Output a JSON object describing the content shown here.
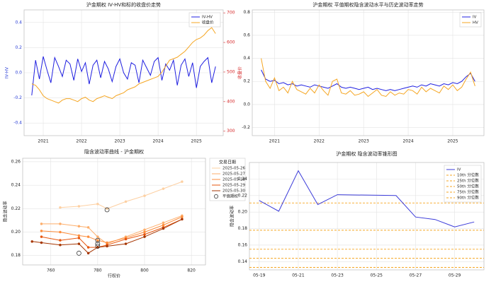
{
  "chart_data": [
    {
      "type": "line",
      "title": "沪金期权 IV-HV和标的收盘价走势",
      "ylabel": "IV-HV",
      "y2label": "收盘价",
      "y_color": "#2b3fd6",
      "y2_color": "#d62728",
      "grid": true,
      "legend": "upper right",
      "x": [
        2020.7,
        2020.8,
        2020.9,
        2021.0,
        2021.1,
        2021.2,
        2021.3,
        2021.4,
        2021.5,
        2021.6,
        2021.7,
        2021.8,
        2021.9,
        2022.0,
        2022.1,
        2022.2,
        2022.3,
        2022.4,
        2022.5,
        2022.6,
        2022.7,
        2022.8,
        2022.9,
        2023.0,
        2023.1,
        2023.2,
        2023.3,
        2023.4,
        2023.5,
        2023.6,
        2023.7,
        2023.8,
        2023.9,
        2024.0,
        2024.1,
        2024.2,
        2024.3,
        2024.4,
        2024.5,
        2024.6,
        2024.7,
        2024.8,
        2024.9,
        2025.0,
        2025.1,
        2025.2,
        2025.3,
        2025.4,
        2025.5
      ],
      "xlim": [
        2020.5,
        2025.7
      ],
      "xticks": [
        2021,
        2022,
        2023,
        2024,
        2025
      ],
      "ylim": [
        -0.5,
        0.5
      ],
      "yticks": [
        -0.4,
        -0.2,
        {
          "value": 0,
          "label": "0.0"
        },
        0.2,
        0.4
      ],
      "y2lim": [
        285,
        710
      ],
      "y2ticks": [
        300,
        400,
        500,
        600,
        700
      ],
      "series": [
        {
          "name": "IV-HV",
          "color": "#1f1fe0",
          "values": [
            -0.18,
            0.1,
            -0.05,
            0.13,
            0.02,
            -0.08,
            0.12,
            0.05,
            -0.03,
            0.1,
            0.07,
            -0.06,
            0.11,
            0.01,
            0.08,
            -0.09,
            0.06,
            0.1,
            -0.04,
            0.09,
            0.03,
            -0.07,
            0.05,
            0.11,
            0.0,
            -0.05,
            0.08,
            0.06,
            -0.08,
            0.1,
            0.04,
            -0.02,
            0.09,
            0.12,
            -0.06,
            0.07,
            0.02,
            0.1,
            -0.1,
            0.06,
            0.11,
            -0.03,
            0.08,
            -0.12,
            0.05,
            0.09,
            0.12,
            -0.08,
            0.05
          ]
        },
        {
          "name": "收盘价",
          "color": "#f5a623",
          "axis": "y2",
          "values": [
            460,
            455,
            440,
            420,
            410,
            405,
            400,
            395,
            405,
            410,
            410,
            405,
            400,
            410,
            415,
            405,
            400,
            410,
            415,
            420,
            415,
            410,
            420,
            425,
            430,
            440,
            445,
            450,
            460,
            465,
            470,
            475,
            480,
            485,
            500,
            520,
            540,
            545,
            550,
            560,
            570,
            585,
            600,
            610,
            615,
            625,
            640,
            650,
            630
          ]
        }
      ]
    },
    {
      "type": "line",
      "title": "沪金期权 平值期权隐含波动水平与历史波动率走势",
      "grid": true,
      "legend": "upper right",
      "x": [
        2020.7,
        2020.8,
        2020.9,
        2021.0,
        2021.1,
        2021.2,
        2021.3,
        2021.4,
        2021.5,
        2021.6,
        2021.7,
        2021.8,
        2021.9,
        2022.0,
        2022.1,
        2022.2,
        2022.3,
        2022.4,
        2022.5,
        2022.6,
        2022.7,
        2022.8,
        2022.9,
        2023.0,
        2023.1,
        2023.2,
        2023.3,
        2023.4,
        2023.5,
        2023.6,
        2023.7,
        2023.8,
        2023.9,
        2024.0,
        2024.1,
        2024.2,
        2024.3,
        2024.4,
        2024.5,
        2024.6,
        2024.7,
        2024.8,
        2024.9,
        2025.0,
        2025.1,
        2025.2,
        2025.3,
        2025.4,
        2025.5
      ],
      "xlim": [
        2020.5,
        2025.7
      ],
      "xticks": [
        2021,
        2022,
        2023,
        2024,
        2025
      ],
      "ylim": [
        -0.27,
        0.82
      ],
      "yticks": [
        -0.2,
        {
          "value": 0,
          "label": "0.0"
        },
        0.2,
        0.4,
        0.6,
        0.8
      ],
      "series": [
        {
          "name": "IV",
          "color": "#1f1fe0",
          "values": [
            0.3,
            0.22,
            0.2,
            0.21,
            0.18,
            0.19,
            0.17,
            0.18,
            0.16,
            0.17,
            0.16,
            0.15,
            0.17,
            0.16,
            0.15,
            0.14,
            0.16,
            0.18,
            0.15,
            0.14,
            0.15,
            0.14,
            0.13,
            0.14,
            0.15,
            0.13,
            0.14,
            0.13,
            0.12,
            0.13,
            0.12,
            0.13,
            0.14,
            0.15,
            0.16,
            0.15,
            0.17,
            0.16,
            0.18,
            0.17,
            0.16,
            0.18,
            0.17,
            0.19,
            0.18,
            0.2,
            0.24,
            0.27,
            0.2
          ]
        },
        {
          "name": "HV",
          "color": "#f5a623",
          "values": [
            0.4,
            0.2,
            0.14,
            0.23,
            0.12,
            0.15,
            0.1,
            0.2,
            0.13,
            0.11,
            0.09,
            0.14,
            0.1,
            0.17,
            0.12,
            0.08,
            0.2,
            0.22,
            0.1,
            0.09,
            0.12,
            0.08,
            0.09,
            0.11,
            0.07,
            0.1,
            0.13,
            0.08,
            0.07,
            0.11,
            0.08,
            0.1,
            0.09,
            0.13,
            0.12,
            0.09,
            0.15,
            0.11,
            0.14,
            0.12,
            0.1,
            0.16,
            0.13,
            0.17,
            0.12,
            0.15,
            0.22,
            0.28,
            0.16
          ]
        }
      ]
    },
    {
      "type": "line",
      "title": "隐含波动率曲线 - 沪金期权",
      "xlabel": "行权价",
      "ylabel": "隐含波动率",
      "grid": true,
      "legend": "outside right",
      "legend_title": "交易日期",
      "xlim": [
        748,
        826
      ],
      "xticks": [
        760,
        780,
        800,
        820
      ],
      "ylim": [
        0.172,
        0.263
      ],
      "yticks": [
        0.18,
        {
          "value": 0.2,
          "label": "0.20"
        },
        0.22,
        0.24,
        0.26
      ],
      "series": [
        {
          "name": "2025-05-26",
          "color": "#fdd0a2",
          "marker": "o",
          "x": [
            764,
            772,
            780,
            784,
            792,
            800,
            808,
            816
          ],
          "values": [
            0.221,
            0.222,
            0.224,
            0.22,
            0.226,
            0.231,
            0.237,
            0.243
          ]
        },
        {
          "name": "2025-05-27",
          "color": "#fdae6b",
          "marker": "o",
          "x": [
            756,
            764,
            772,
            776,
            780,
            784,
            792,
            800,
            808,
            816
          ],
          "values": [
            0.207,
            0.207,
            0.205,
            0.204,
            0.196,
            0.19,
            0.196,
            0.202,
            0.208,
            0.214
          ]
        },
        {
          "name": "2025-05-28",
          "color": "#fd8d3c",
          "marker": "o",
          "x": [
            756,
            764,
            772,
            776,
            780,
            784,
            792,
            800,
            808,
            816
          ],
          "values": [
            0.201,
            0.2,
            0.197,
            0.196,
            0.193,
            0.191,
            0.195,
            0.2,
            0.206,
            0.213
          ]
        },
        {
          "name": "2025-05-29",
          "color": "#e6550d",
          "marker": "o",
          "x": [
            756,
            764,
            772,
            776,
            780,
            784,
            792,
            800,
            808,
            816
          ],
          "values": [
            0.196,
            0.193,
            0.195,
            0.187,
            0.187,
            0.189,
            0.194,
            0.198,
            0.204,
            0.211
          ]
        },
        {
          "name": "2025-05-30",
          "color": "#a63603",
          "marker": "o",
          "x": [
            752,
            756,
            764,
            772,
            776,
            780,
            784,
            792,
            800,
            808,
            816
          ],
          "values": [
            0.192,
            0.191,
            0.189,
            0.19,
            0.182,
            0.187,
            0.188,
            0.19,
            0.196,
            0.203,
            0.211
          ]
        },
        {
          "name": "平值期权",
          "color": "#222222",
          "marker": "ring",
          "line": false,
          "x": [
            784,
            780,
            780,
            780,
            772
          ],
          "values": [
            0.219,
            0.193,
            0.19,
            0.188,
            0.182
          ]
        }
      ]
    },
    {
      "type": "line",
      "title": "沪金期权 隐含波动率锥形图",
      "ylabel": "隐含波动率",
      "grid": true,
      "legend": "upper right",
      "x": [
        19,
        20,
        21,
        22,
        23,
        26,
        27,
        28,
        29,
        30
      ],
      "xlim": [
        18.5,
        30.5
      ],
      "xticks": [
        {
          "value": 19,
          "label": "05-19"
        },
        {
          "value": 21,
          "label": "05-21"
        },
        {
          "value": 23,
          "label": "05-23"
        },
        {
          "value": 25,
          "label": "05-25"
        },
        {
          "value": 27,
          "label": "05-27"
        },
        {
          "value": 29,
          "label": "05-29"
        }
      ],
      "ylim": [
        0.13,
        0.26
      ],
      "yticks": [
        0.14,
        0.16,
        0.18,
        {
          "value": 0.2,
          "label": "0.20"
        },
        0.22,
        0.24
      ],
      "series": [
        {
          "name": "IV",
          "color": "#3b3bd9",
          "values": [
            0.214,
            0.201,
            0.25,
            0.209,
            0.221,
            0.22,
            0.194,
            0.191,
            0.182,
            0.188
          ]
        }
      ],
      "hlines": [
        {
          "name": "10th 分位数",
          "color": "#f5a623",
          "value": 0.133
        },
        {
          "name": "25th 分位数",
          "color": "#f5a623",
          "value": 0.144
        },
        {
          "name": "50th 分位数",
          "color": "#f5a623",
          "value": 0.155
        },
        {
          "name": "75th 分位数",
          "color": "#f5a623",
          "value": 0.178
        },
        {
          "name": "90th 分位数",
          "color": "#f5a623",
          "value": 0.211
        }
      ]
    }
  ]
}
